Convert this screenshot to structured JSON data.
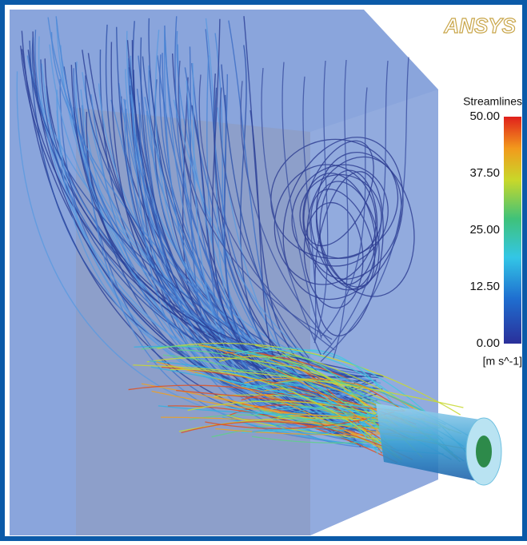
{
  "logo": "ANSYS",
  "legend": {
    "title": "Streamlines",
    "ticks": [
      {
        "value": 50,
        "label": "50.00"
      },
      {
        "value": 37.5,
        "label": "37.50"
      },
      {
        "value": 25,
        "label": "25.00"
      },
      {
        "value": 12.5,
        "label": "12.50"
      },
      {
        "value": 0,
        "label": "0.00"
      }
    ],
    "unit": "[m s^-1]"
  }
}
